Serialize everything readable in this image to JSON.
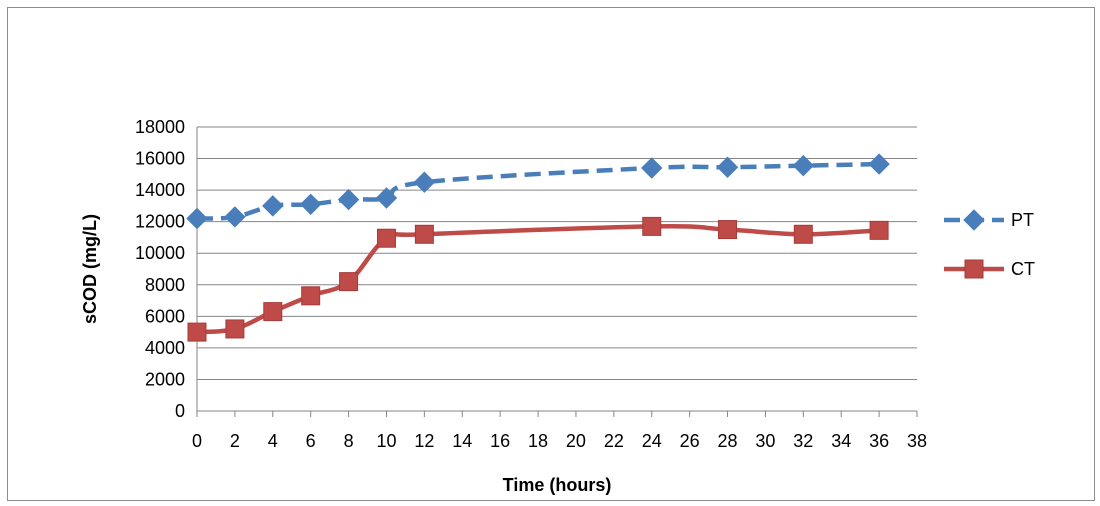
{
  "chart_data": {
    "type": "line",
    "title": "",
    "xlabel": "Time (hours)",
    "ylabel": "sCOD (mg/L)",
    "xlim": [
      0,
      38
    ],
    "ylim": [
      0,
      18000
    ],
    "x_ticks": [
      "0",
      "2",
      "4",
      "6",
      "8",
      "10",
      "12",
      "14",
      "16",
      "18",
      "20",
      "22",
      "24",
      "26",
      "28",
      "30",
      "32",
      "34",
      "36",
      "38"
    ],
    "y_ticks": [
      "0",
      "2000",
      "4000",
      "6000",
      "8000",
      "10000",
      "12000",
      "14000",
      "16000",
      "18000"
    ],
    "grid": "horizontal",
    "legend_position": "right",
    "series": [
      {
        "name": "PT",
        "color": "#4a7ebb",
        "line_style": "dashed",
        "marker": "diamond",
        "x": [
          0,
          2,
          4,
          6,
          8,
          10,
          12,
          24,
          28,
          32,
          36
        ],
        "y": [
          12200,
          12300,
          13000,
          13100,
          13400,
          13500,
          14500,
          15400,
          15450,
          15550,
          15650
        ]
      },
      {
        "name": "CT",
        "color": "#be4b48",
        "line_style": "solid",
        "marker": "square",
        "x": [
          0,
          2,
          4,
          6,
          8,
          10,
          12,
          24,
          28,
          32,
          36
        ],
        "y": [
          5000,
          5200,
          6300,
          7300,
          8200,
          10950,
          11200,
          11700,
          11500,
          11200,
          11450
        ]
      }
    ]
  }
}
